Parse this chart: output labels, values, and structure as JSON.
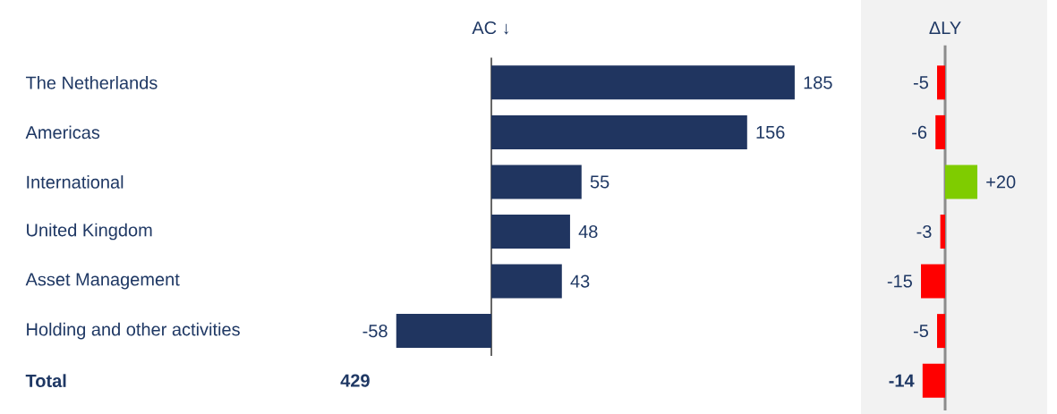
{
  "chart_data": [
    {
      "type": "bar",
      "orientation": "horizontal",
      "title": "AC ↓",
      "tick_labels": "y",
      "categories": [
        "The Netherlands",
        "Americas",
        "International",
        "United Kingdom",
        "Asset Management",
        "Holding and other activities",
        "Total"
      ],
      "values": [
        185,
        156,
        55,
        48,
        43,
        -58,
        null
      ],
      "value_labels": [
        "185",
        "156",
        "55",
        "48",
        "43",
        "-58",
        "429"
      ],
      "color": "#203560"
    },
    {
      "type": "bar",
      "orientation": "horizontal",
      "title": "ΔLY",
      "values": [
        -5,
        -6,
        20,
        -3,
        -15,
        -5,
        -14
      ],
      "value_labels": [
        "-5",
        "-6",
        "+20",
        "-3",
        "-15",
        "-5",
        "-14"
      ],
      "colors": [
        "#ff0000",
        "#ff0000",
        "#7fcc00",
        "#ff0000",
        "#ff0000",
        "#ff0000",
        "#ff0000"
      ]
    }
  ]
}
